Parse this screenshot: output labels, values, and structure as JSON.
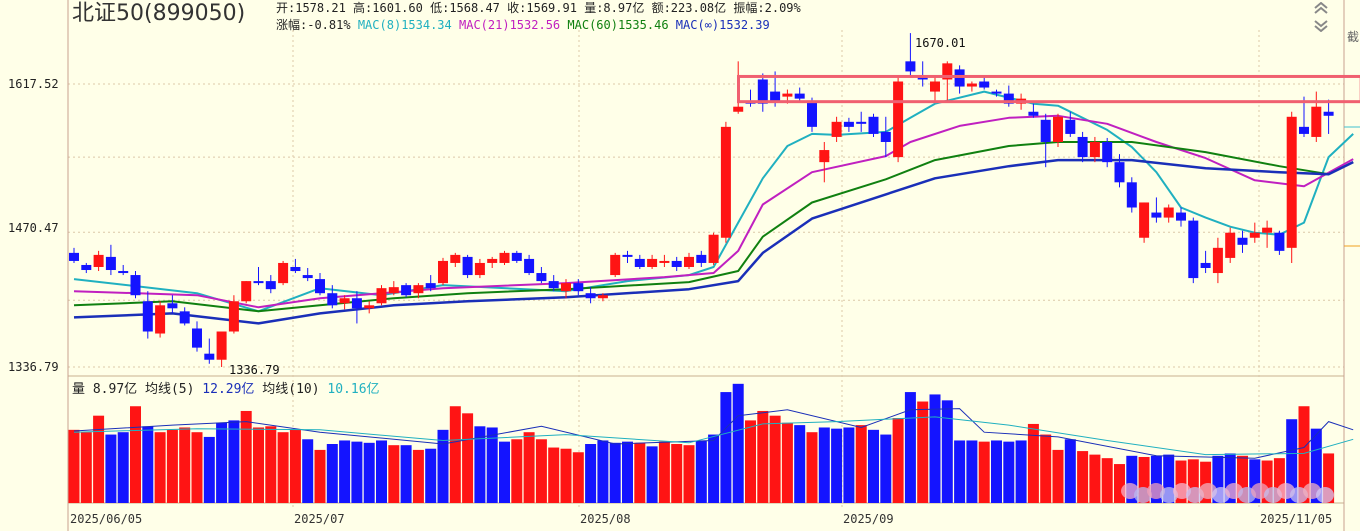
{
  "header": {
    "name": "北证50",
    "code": "(899050)",
    "open_label": "开:",
    "open": "1578.21",
    "high_label": "高:",
    "high": "1601.60",
    "low_label": "低:",
    "low": "1568.47",
    "close_label": "收:",
    "close": "1569.91",
    "vol_label": "量:",
    "vol": "8.97亿",
    "amount_label": "额:",
    "amount": "223.08亿",
    "amp_label": "振幅:",
    "amp": "2.09%",
    "chg_label": "涨幅:",
    "chg": "-0.81%",
    "mac8_label": "MAC(8)",
    "mac8": "1534.34",
    "mac21_label": "MAC(21)",
    "mac21": "1532.56",
    "mac60_label": "MAC(60)",
    "mac60": "1535.46",
    "macinf_label": "MAC(∞)",
    "macinf": "1532.39"
  },
  "volume_header": {
    "label": "量",
    "value": "8.97亿",
    "ma5_label": "均线(5)",
    "ma5": "12.29亿",
    "ma10_label": "均线(10)",
    "ma10": "10.16亿"
  },
  "side": {
    "char": "截"
  },
  "annotations": {
    "peak": "1670.01",
    "trough": "1336.79"
  },
  "colors": {
    "up": "#ff1414",
    "down": "#1414ff",
    "mac8": "#20b0c0",
    "mac21": "#c020c0",
    "mac60": "#108010",
    "macinf": "#1a2fb8",
    "box": "#f06070",
    "grid": "#dcc8a8"
  },
  "chart_data": {
    "type": "candlestick",
    "yticks": [
      1617.52,
      1470.47,
      1336.79
    ],
    "ylim": [
      1336.79,
      1670.01
    ],
    "xlabels": [
      "2025/06/05",
      "2025/07",
      "2025/08",
      "2025/09",
      "2025/11/05"
    ],
    "ohlc": [
      [
        1450,
        1455,
        1440,
        1442
      ],
      [
        1438,
        1440,
        1430,
        1433
      ],
      [
        1436,
        1452,
        1432,
        1448
      ],
      [
        1446,
        1458,
        1428,
        1433
      ],
      [
        1432,
        1438,
        1428,
        1430
      ],
      [
        1428,
        1432,
        1405,
        1408
      ],
      [
        1402,
        1412,
        1365,
        1372
      ],
      [
        1370,
        1402,
        1366,
        1398
      ],
      [
        1400,
        1408,
        1390,
        1395
      ],
      [
        1392,
        1396,
        1378,
        1380
      ],
      [
        1375,
        1382,
        1352,
        1356
      ],
      [
        1350,
        1365,
        1340,
        1344
      ],
      [
        1344,
        1372,
        1336.79,
        1372
      ],
      [
        1372,
        1408,
        1370,
        1402
      ],
      [
        1402,
        1422,
        1400,
        1422
      ],
      [
        1422,
        1436,
        1418,
        1420
      ],
      [
        1422,
        1428,
        1410,
        1414
      ],
      [
        1420,
        1442,
        1418,
        1440
      ],
      [
        1436,
        1444,
        1430,
        1432
      ],
      [
        1428,
        1435,
        1422,
        1425
      ],
      [
        1424,
        1430,
        1408,
        1410
      ],
      [
        1410,
        1418,
        1395,
        1398
      ],
      [
        1400,
        1408,
        1394,
        1405
      ],
      [
        1405,
        1412,
        1380,
        1395
      ],
      [
        1395,
        1402,
        1390,
        1398
      ],
      [
        1400,
        1418,
        1398,
        1415
      ],
      [
        1410,
        1422,
        1408,
        1416
      ],
      [
        1418,
        1420,
        1406,
        1408
      ],
      [
        1410,
        1420,
        1405,
        1418
      ],
      [
        1420,
        1428,
        1412,
        1415
      ],
      [
        1420,
        1445,
        1418,
        1442
      ],
      [
        1440,
        1450,
        1436,
        1448
      ],
      [
        1446,
        1448,
        1425,
        1428
      ],
      [
        1428,
        1444,
        1425,
        1440
      ],
      [
        1440,
        1446,
        1435,
        1444
      ],
      [
        1440,
        1452,
        1438,
        1450
      ],
      [
        1450,
        1452,
        1440,
        1442
      ],
      [
        1444,
        1448,
        1428,
        1430
      ],
      [
        1430,
        1436,
        1420,
        1422
      ],
      [
        1422,
        1428,
        1412,
        1415
      ],
      [
        1412,
        1424,
        1405,
        1420
      ],
      [
        1420,
        1424,
        1408,
        1412
      ],
      [
        1410,
        1416,
        1400,
        1405
      ],
      [
        1405,
        1410,
        1402,
        1408
      ],
      [
        1428,
        1450,
        1426,
        1448
      ],
      [
        1448,
        1452,
        1440,
        1446
      ],
      [
        1444,
        1448,
        1434,
        1436
      ],
      [
        1436,
        1448,
        1434,
        1444
      ],
      [
        1440,
        1448,
        1436,
        1442
      ],
      [
        1442,
        1446,
        1432,
        1436
      ],
      [
        1436,
        1450,
        1434,
        1446
      ],
      [
        1448,
        1452,
        1436,
        1440
      ],
      [
        1440,
        1470,
        1438,
        1468
      ],
      [
        1465,
        1580,
        1460,
        1575
      ],
      [
        1590,
        1640,
        1588,
        1595
      ],
      [
        1600,
        1612,
        1595,
        1598
      ],
      [
        1622,
        1628,
        1590,
        1598
      ],
      [
        1610,
        1630,
        1595,
        1600
      ],
      [
        1605,
        1612,
        1598,
        1608
      ],
      [
        1608,
        1614,
        1600,
        1603
      ],
      [
        1600,
        1604,
        1570,
        1575
      ],
      [
        1540,
        1560,
        1520,
        1552
      ],
      [
        1565,
        1585,
        1560,
        1580
      ],
      [
        1580,
        1584,
        1570,
        1575
      ],
      [
        1580,
        1590,
        1570,
        1578
      ],
      [
        1585,
        1588,
        1565,
        1568
      ],
      [
        1570,
        1585,
        1545,
        1560
      ],
      [
        1545,
        1625,
        1540,
        1620
      ],
      [
        1640,
        1668,
        1625,
        1630
      ],
      [
        1625,
        1640,
        1615,
        1622
      ],
      [
        1610,
        1625,
        1600,
        1620
      ],
      [
        1622,
        1640,
        1600,
        1638
      ],
      [
        1632,
        1636,
        1608,
        1615
      ],
      [
        1615,
        1620,
        1610,
        1618
      ],
      [
        1620,
        1624,
        1612,
        1614
      ],
      [
        1610,
        1612,
        1605,
        1608
      ],
      [
        1608,
        1616,
        1595,
        1598
      ],
      [
        1598,
        1608,
        1592,
        1603
      ],
      [
        1590,
        1598,
        1584,
        1586
      ],
      [
        1582,
        1588,
        1535,
        1560
      ],
      [
        1560,
        1588,
        1555,
        1585
      ],
      [
        1582,
        1590,
        1565,
        1568
      ],
      [
        1565,
        1570,
        1540,
        1545
      ],
      [
        1545,
        1565,
        1540,
        1560
      ],
      [
        1560,
        1564,
        1535,
        1540
      ],
      [
        1540,
        1548,
        1515,
        1520
      ],
      [
        1520,
        1525,
        1490,
        1495
      ],
      [
        1465,
        1500,
        1460,
        1500
      ],
      [
        1490,
        1505,
        1480,
        1485
      ],
      [
        1485,
        1498,
        1480,
        1495
      ],
      [
        1490,
        1495,
        1476,
        1482
      ],
      [
        1482,
        1485,
        1420,
        1425
      ],
      [
        1440,
        1452,
        1430,
        1435
      ],
      [
        1430,
        1465,
        1420,
        1455
      ],
      [
        1445,
        1475,
        1440,
        1470
      ],
      [
        1465,
        1472,
        1450,
        1458
      ],
      [
        1465,
        1480,
        1460,
        1470
      ],
      [
        1470,
        1482,
        1455,
        1475
      ],
      [
        1470,
        1472,
        1448,
        1452
      ],
      [
        1455,
        1590,
        1440,
        1585
      ],
      [
        1575,
        1605,
        1565,
        1568
      ],
      [
        1565,
        1610,
        1560,
        1595
      ],
      [
        1590,
        1602,
        1568,
        1586
      ]
    ],
    "mac_lines": {
      "MAC(8)": [
        [
          0,
          1424
        ],
        [
          10,
          1410
        ],
        [
          15,
          1392
        ],
        [
          20,
          1415
        ],
        [
          25,
          1408
        ],
        [
          30,
          1418
        ],
        [
          40,
          1412
        ],
        [
          45,
          1422
        ],
        [
          50,
          1428
        ],
        [
          52,
          1436
        ],
        [
          54,
          1480
        ],
        [
          56,
          1524
        ],
        [
          58,
          1556
        ],
        [
          60,
          1568
        ],
        [
          62,
          1567
        ],
        [
          66,
          1570
        ],
        [
          68,
          1584
        ],
        [
          70,
          1598
        ],
        [
          74,
          1610
        ],
        [
          78,
          1598
        ],
        [
          80,
          1596
        ],
        [
          84,
          1572
        ],
        [
          86,
          1555
        ],
        [
          88,
          1530
        ],
        [
          90,
          1495
        ],
        [
          92,
          1485
        ],
        [
          94,
          1476
        ],
        [
          96,
          1470
        ],
        [
          98,
          1468
        ],
        [
          100,
          1480
        ],
        [
          102,
          1545
        ],
        [
          104,
          1568
        ]
      ],
      "MAC(21)": [
        [
          0,
          1412
        ],
        [
          10,
          1408
        ],
        [
          15,
          1396
        ],
        [
          20,
          1405
        ],
        [
          25,
          1410
        ],
        [
          30,
          1415
        ],
        [
          40,
          1420
        ],
        [
          48,
          1426
        ],
        [
          52,
          1430
        ],
        [
          54,
          1452
        ],
        [
          56,
          1498
        ],
        [
          60,
          1530
        ],
        [
          66,
          1546
        ],
        [
          68,
          1560
        ],
        [
          72,
          1576
        ],
        [
          76,
          1584
        ],
        [
          80,
          1586
        ],
        [
          84,
          1578
        ],
        [
          88,
          1560
        ],
        [
          92,
          1544
        ],
        [
          96,
          1522
        ],
        [
          100,
          1516
        ],
        [
          104,
          1543
        ]
      ],
      "MAC(60)": [
        [
          0,
          1398
        ],
        [
          8,
          1402
        ],
        [
          15,
          1392
        ],
        [
          20,
          1398
        ],
        [
          26,
          1405
        ],
        [
          32,
          1410
        ],
        [
          40,
          1414
        ],
        [
          50,
          1421
        ],
        [
          54,
          1432
        ],
        [
          56,
          1466
        ],
        [
          60,
          1500
        ],
        [
          66,
          1523
        ],
        [
          70,
          1542
        ],
        [
          76,
          1556
        ],
        [
          80,
          1560
        ],
        [
          86,
          1560
        ],
        [
          92,
          1550
        ],
        [
          98,
          1536
        ],
        [
          102,
          1528
        ],
        [
          104,
          1540
        ]
      ],
      "MAC(∞)": [
        [
          0,
          1386
        ],
        [
          8,
          1390
        ],
        [
          15,
          1380
        ],
        [
          20,
          1390
        ],
        [
          26,
          1398
        ],
        [
          32,
          1402
        ],
        [
          40,
          1406
        ],
        [
          50,
          1414
        ],
        [
          54,
          1422
        ],
        [
          56,
          1450
        ],
        [
          60,
          1484
        ],
        [
          66,
          1508
        ],
        [
          70,
          1524
        ],
        [
          76,
          1536
        ],
        [
          80,
          1542
        ],
        [
          86,
          1542
        ],
        [
          92,
          1534
        ],
        [
          98,
          1530
        ],
        [
          102,
          1528
        ],
        [
          104,
          1540
        ]
      ]
    },
    "volume": [
      [
        6.2,
        1
      ],
      [
        6.0,
        1
      ],
      [
        7.4,
        1
      ],
      [
        5.8,
        0
      ],
      [
        6.0,
        0
      ],
      [
        8.2,
        1
      ],
      [
        6.5,
        0
      ],
      [
        6.0,
        1
      ],
      [
        6.2,
        1
      ],
      [
        6.4,
        1
      ],
      [
        6.0,
        1
      ],
      [
        5.6,
        0
      ],
      [
        6.8,
        0
      ],
      [
        7.0,
        0
      ],
      [
        7.8,
        1
      ],
      [
        6.4,
        1
      ],
      [
        6.5,
        1
      ],
      [
        6.0,
        1
      ],
      [
        6.2,
        1
      ],
      [
        5.4,
        0
      ],
      [
        4.5,
        1
      ],
      [
        5.0,
        0
      ],
      [
        5.3,
        0
      ],
      [
        5.2,
        0
      ],
      [
        5.1,
        0
      ],
      [
        5.3,
        0
      ],
      [
        4.9,
        1
      ],
      [
        4.9,
        0
      ],
      [
        4.5,
        1
      ],
      [
        4.6,
        0
      ],
      [
        6.2,
        0
      ],
      [
        8.2,
        1
      ],
      [
        7.6,
        1
      ],
      [
        6.5,
        0
      ],
      [
        6.4,
        0
      ],
      [
        5.2,
        0
      ],
      [
        5.4,
        1
      ],
      [
        6.0,
        1
      ],
      [
        5.4,
        1
      ],
      [
        4.7,
        1
      ],
      [
        4.6,
        1
      ],
      [
        4.3,
        1
      ],
      [
        5.0,
        0
      ],
      [
        5.3,
        0
      ],
      [
        5.1,
        0
      ],
      [
        5.2,
        0
      ],
      [
        5.1,
        1
      ],
      [
        4.8,
        0
      ],
      [
        5.2,
        1
      ],
      [
        5.0,
        1
      ],
      [
        4.9,
        1
      ],
      [
        5.3,
        0
      ],
      [
        5.8,
        0
      ],
      [
        9.4,
        0
      ],
      [
        10.1,
        0
      ],
      [
        7.0,
        1
      ],
      [
        7.8,
        1
      ],
      [
        7.4,
        1
      ],
      [
        6.8,
        1
      ],
      [
        6.6,
        0
      ],
      [
        6.0,
        1
      ],
      [
        6.4,
        0
      ],
      [
        6.3,
        0
      ],
      [
        6.4,
        0
      ],
      [
        6.6,
        1
      ],
      [
        6.2,
        0
      ],
      [
        5.8,
        0
      ],
      [
        7.2,
        1
      ],
      [
        9.4,
        0
      ],
      [
        8.6,
        1
      ],
      [
        9.2,
        0
      ],
      [
        8.7,
        0
      ],
      [
        5.3,
        0
      ],
      [
        5.3,
        0
      ],
      [
        5.2,
        1
      ],
      [
        5.3,
        0
      ],
      [
        5.2,
        0
      ],
      [
        5.3,
        0
      ],
      [
        6.7,
        1
      ],
      [
        5.8,
        1
      ],
      [
        4.5,
        1
      ],
      [
        5.4,
        0
      ],
      [
        4.4,
        1
      ],
      [
        4.1,
        1
      ],
      [
        3.8,
        1
      ],
      [
        3.3,
        1
      ],
      [
        4.0,
        0
      ],
      [
        3.9,
        1
      ],
      [
        4.0,
        0
      ],
      [
        4.1,
        0
      ],
      [
        3.6,
        1
      ],
      [
        3.7,
        1
      ],
      [
        3.5,
        1
      ],
      [
        4.0,
        0
      ],
      [
        4.2,
        0
      ],
      [
        4.0,
        1
      ],
      [
        3.7,
        0
      ],
      [
        3.6,
        1
      ],
      [
        3.8,
        1
      ],
      [
        7.1,
        0
      ],
      [
        8.2,
        1
      ],
      [
        6.3,
        0
      ],
      [
        4.2,
        1
      ]
    ],
    "volume_ma5": [
      [
        0,
        6.1
      ],
      [
        8,
        6.6
      ],
      [
        14,
        6.9
      ],
      [
        20,
        6.0
      ],
      [
        30,
        5.0
      ],
      [
        38,
        6.5
      ],
      [
        44,
        5.0
      ],
      [
        52,
        5.3
      ],
      [
        54,
        7.4
      ],
      [
        58,
        7.9
      ],
      [
        64,
        6.4
      ],
      [
        68,
        7.9
      ],
      [
        72,
        8.0
      ],
      [
        74,
        6.0
      ],
      [
        80,
        5.6
      ],
      [
        88,
        4.0
      ],
      [
        96,
        3.8
      ],
      [
        100,
        4.7
      ],
      [
        102,
        6.9
      ],
      [
        104,
        6.2
      ]
    ],
    "volume_ma10": [
      [
        0,
        6.0
      ],
      [
        10,
        6.3
      ],
      [
        20,
        6.2
      ],
      [
        30,
        5.3
      ],
      [
        40,
        5.8
      ],
      [
        50,
        5.1
      ],
      [
        56,
        6.7
      ],
      [
        62,
        6.9
      ],
      [
        70,
        7.3
      ],
      [
        76,
        6.6
      ],
      [
        84,
        5.3
      ],
      [
        92,
        4.1
      ],
      [
        100,
        4.2
      ],
      [
        104,
        5.4
      ]
    ],
    "highlight_range": [
      1600,
      1625
    ]
  }
}
